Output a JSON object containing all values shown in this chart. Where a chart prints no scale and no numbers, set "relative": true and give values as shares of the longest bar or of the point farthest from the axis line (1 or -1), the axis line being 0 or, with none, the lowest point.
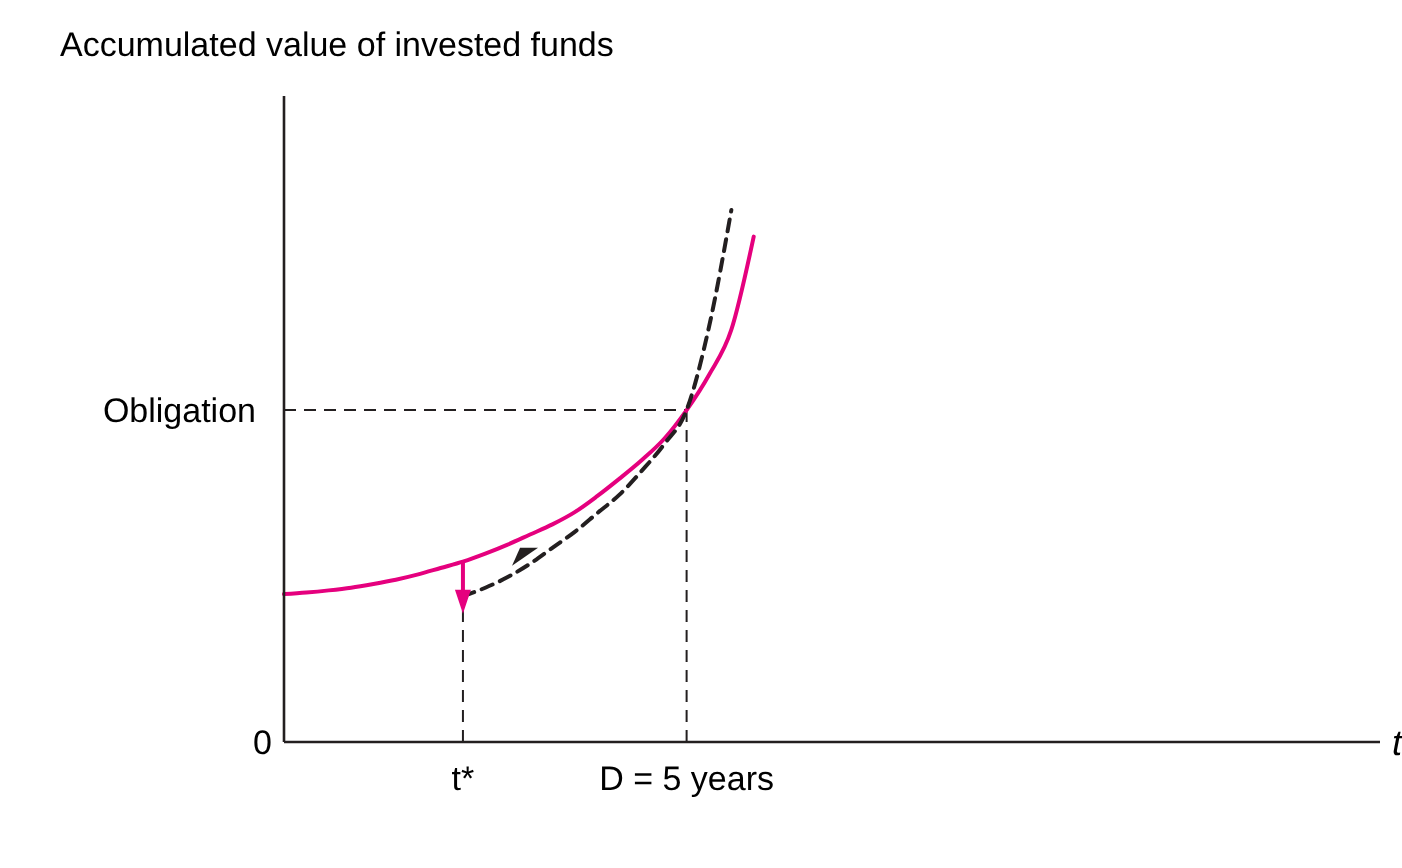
{
  "chart_data": {
    "type": "line",
    "relative": true,
    "ylabel": "Accumulated value of invested funds",
    "xlabel": "t",
    "categories": [
      null,
      null,
      null,
      null,
      null,
      null,
      null,
      null,
      "t*",
      null,
      null,
      null,
      null,
      null,
      null,
      null,
      null,
      null,
      "D = 5 years",
      null,
      null,
      null,
      null,
      null,
      null,
      null,
      null,
      null,
      null,
      null,
      null,
      null,
      null,
      null,
      null,
      null,
      null,
      null,
      null,
      null,
      null,
      null,
      null,
      null,
      null,
      null,
      null,
      null,
      null,
      null
    ],
    "series": [
      {
        "color": "#e5007e",
        "line_style": "solid",
        "values": [
          0.278,
          0.281,
          0.285,
          0.29,
          0.297,
          0.305,
          0.315,
          0.327,
          0.339,
          0.354,
          0.371,
          0.39,
          0.409,
          0.432,
          0.462,
          0.495,
          0.53,
          0.57,
          0.624,
          0.69,
          0.775,
          0.95,
          null,
          null,
          null,
          null,
          null,
          null,
          null,
          null,
          null,
          null,
          null,
          null,
          null,
          null,
          null,
          null,
          null,
          null,
          null,
          null,
          null,
          null,
          null,
          null,
          null,
          null,
          null,
          null
        ]
      },
      {
        "color": "#231f20",
        "line_style": "dashed",
        "values": [
          null,
          null,
          null,
          null,
          null,
          null,
          null,
          null,
          0.274,
          0.29,
          0.31,
          0.335,
          0.365,
          0.395,
          0.43,
          0.465,
          0.51,
          0.56,
          0.624,
          0.78,
          1.0,
          null,
          null,
          null,
          null,
          null,
          null,
          null,
          null,
          null,
          null,
          null,
          null,
          null,
          null,
          null,
          null,
          null,
          null,
          null,
          null,
          null,
          null,
          null,
          null,
          null,
          null,
          null,
          null,
          null
        ]
      }
    ],
    "ref_lines": [
      {
        "axis": "y",
        "value": 0.624,
        "label": "Obligation",
        "line_style": "dashed"
      },
      {
        "axis": "x",
        "value": "t*",
        "line_style": "dashed"
      },
      {
        "axis": "x",
        "value": "D = 5 years",
        "line_style": "dashed"
      }
    ],
    "annotations": [
      "0"
    ]
  }
}
